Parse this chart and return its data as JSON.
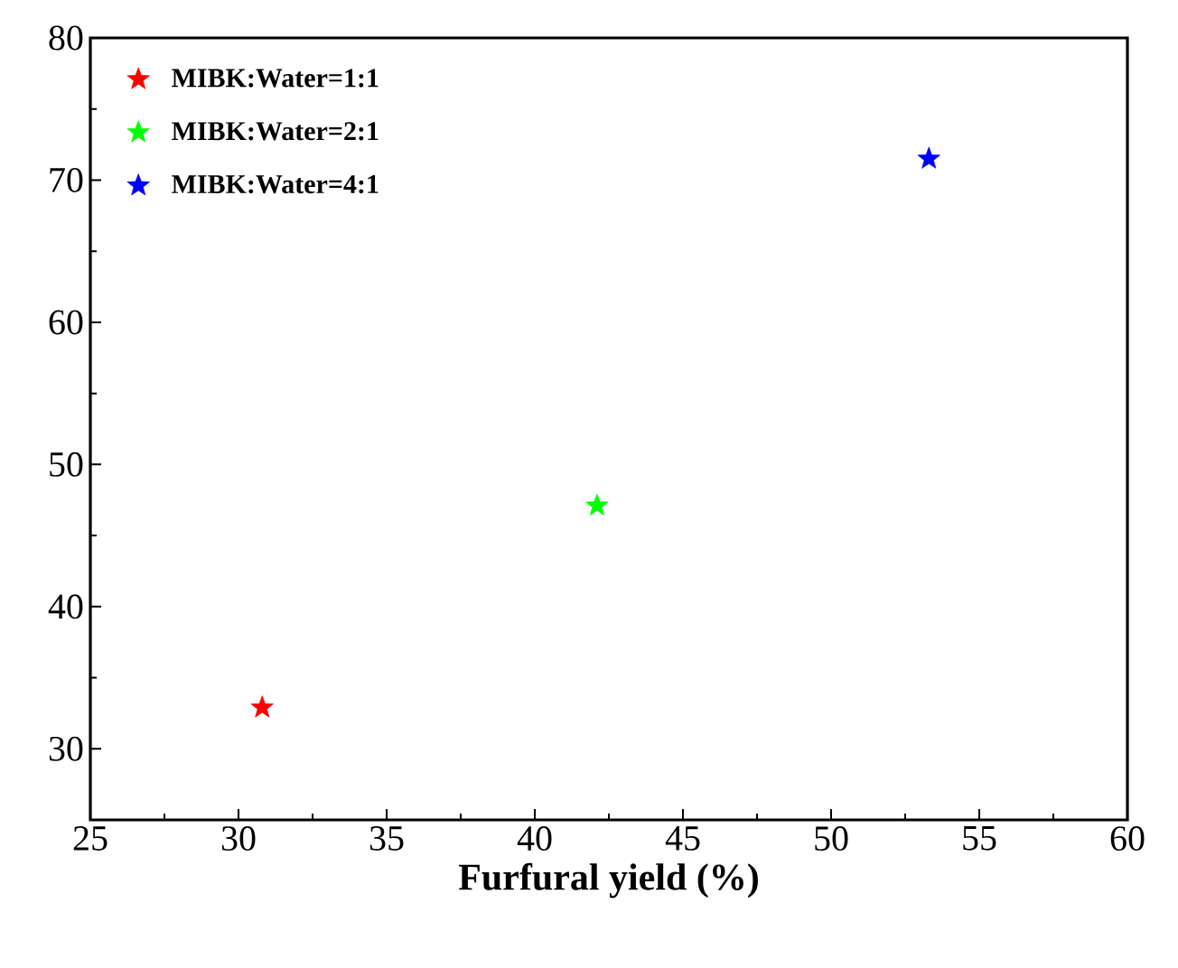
{
  "chart_data": {
    "type": "scatter",
    "xlabel": "Furfural yield (%)",
    "xlim": [
      25,
      60
    ],
    "xticks": [
      25,
      30,
      35,
      40,
      45,
      50,
      55,
      60
    ],
    "ylim": [
      25,
      80
    ],
    "yticks": [
      30,
      40,
      50,
      60,
      70,
      80
    ],
    "marker": "star",
    "legend": "top left",
    "series": [
      {
        "name": "MIBK:Water=1:1",
        "color": "#ff0000",
        "x": [
          30.8
        ],
        "values": [
          32.9
        ]
      },
      {
        "name": "MIBK:Water=2:1",
        "color": "#00ff00",
        "x": [
          42.1
        ],
        "values": [
          47.1
        ]
      },
      {
        "name": "MIBK:Water=4:1",
        "color": "#0000ff",
        "x": [
          53.3
        ],
        "values": [
          71.5
        ]
      }
    ]
  }
}
